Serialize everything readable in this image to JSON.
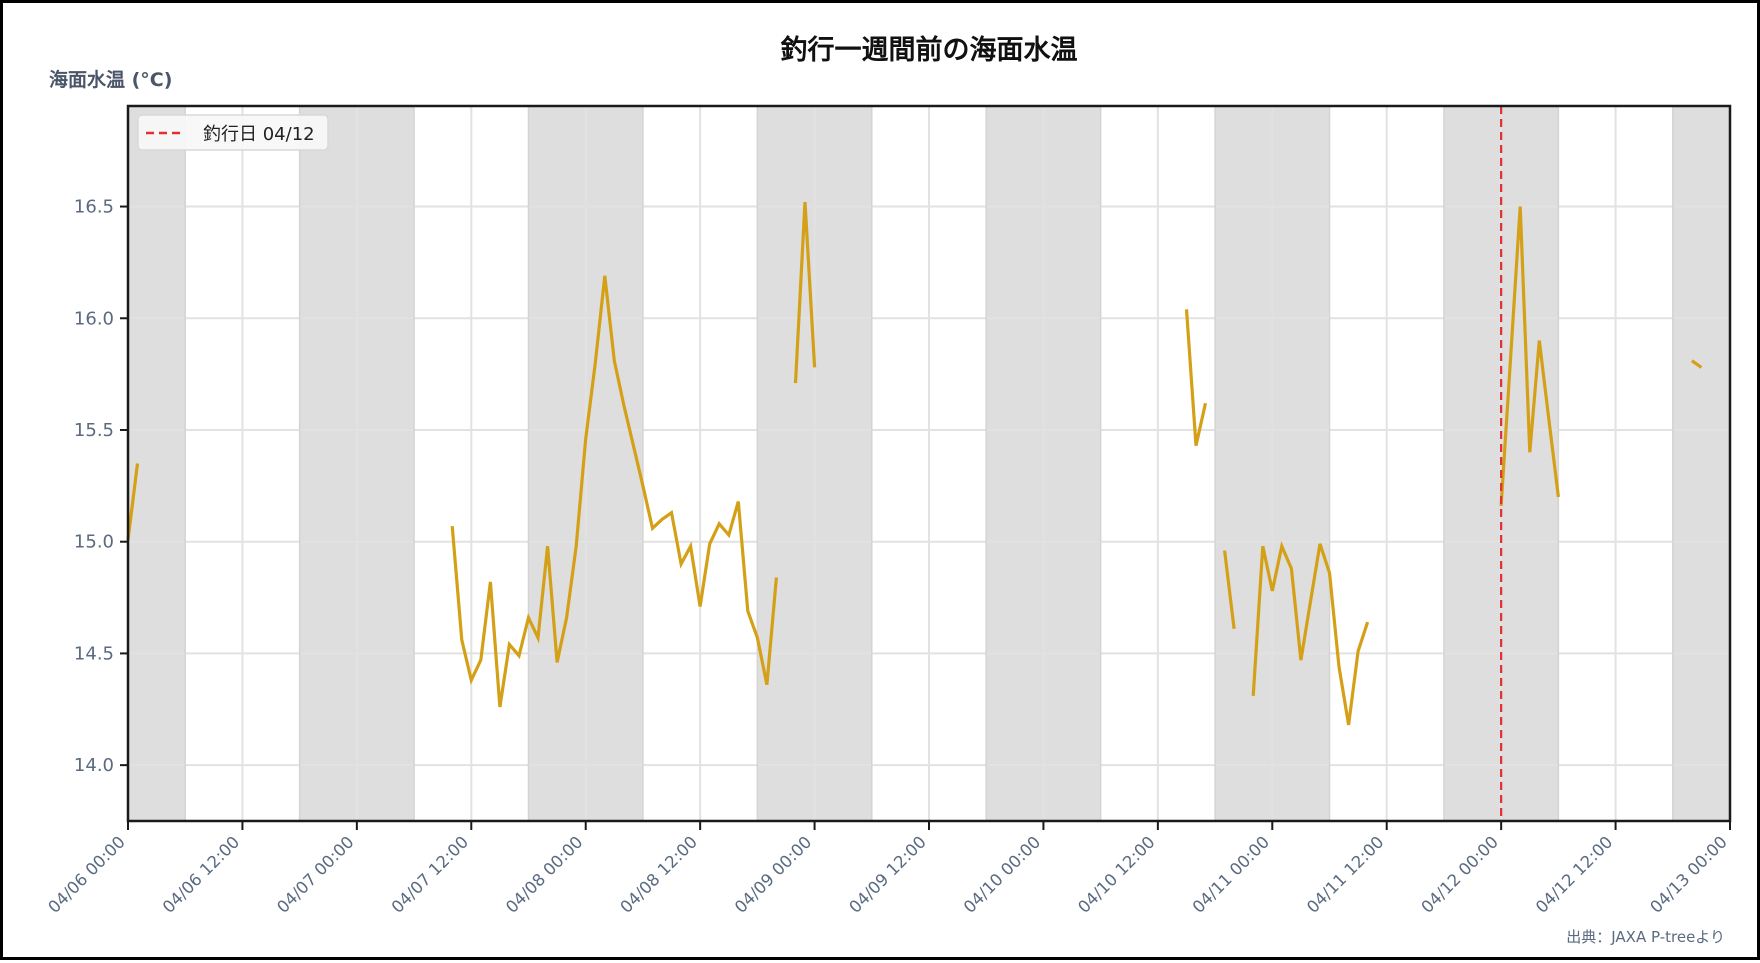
{
  "title": "釣行一週間前の海面水温",
  "y_axis_label": "海面水温 (°C)",
  "legend": {
    "label": "釣行日 04/12",
    "color": "#E03030",
    "style": "dashed"
  },
  "source_note": "出典：JAXA P-treeより",
  "colors": {
    "line": "#D4A017",
    "night_band": "#DEDEDE",
    "grid": "#E2E2E2",
    "axis": "#1a1a1a",
    "fishing_day_marker": "#E03030"
  },
  "chart_data": {
    "type": "line",
    "title": "釣行一週間前の海面水温",
    "xlabel": "",
    "ylabel": "海面水温 (°C)",
    "x_range": [
      "04/06 00:00",
      "04/13 00:00"
    ],
    "ylim": [
      13.75,
      16.95
    ],
    "x_ticks": [
      "04/06 00:00",
      "04/06 12:00",
      "04/07 00:00",
      "04/07 12:00",
      "04/08 00:00",
      "04/08 12:00",
      "04/09 00:00",
      "04/09 12:00",
      "04/10 00:00",
      "04/10 12:00",
      "04/11 00:00",
      "04/11 12:00",
      "04/12 00:00",
      "04/12 12:00",
      "04/13 00:00"
    ],
    "y_ticks": [
      14.0,
      14.5,
      15.0,
      15.5,
      16.0,
      16.5
    ],
    "grid": true,
    "legend_position": "upper left",
    "night_bands": [
      [
        "04/06 00:00",
        "04/06 06:00"
      ],
      [
        "04/06 18:00",
        "04/07 06:00"
      ],
      [
        "04/07 18:00",
        "04/08 06:00"
      ],
      [
        "04/08 18:00",
        "04/09 06:00"
      ],
      [
        "04/09 18:00",
        "04/10 06:00"
      ],
      [
        "04/10 18:00",
        "04/11 06:00"
      ],
      [
        "04/11 18:00",
        "04/12 06:00"
      ],
      [
        "04/12 18:00",
        "04/13 00:00"
      ]
    ],
    "vertical_marker": {
      "x": "04/12 00:00",
      "label": "釣行日 04/12"
    },
    "series": [
      {
        "name": "海面水温",
        "unit": "°C",
        "segments": [
          [
            [
              "04/06 00:00",
              15.01
            ],
            [
              "04/06 01:00",
              15.35
            ]
          ],
          [
            [
              "04/07 10:00",
              15.07
            ],
            [
              "04/07 11:00",
              14.56
            ],
            [
              "04/07 12:00",
              14.38
            ],
            [
              "04/07 13:00",
              14.47
            ],
            [
              "04/07 14:00",
              14.82
            ],
            [
              "04/07 15:00",
              14.26
            ],
            [
              "04/07 16:00",
              14.54
            ],
            [
              "04/07 17:00",
              14.49
            ],
            [
              "04/07 18:00",
              14.66
            ],
            [
              "04/07 19:00",
              14.57
            ],
            [
              "04/07 20:00",
              14.98
            ],
            [
              "04/07 21:00",
              14.46
            ],
            [
              "04/07 22:00",
              14.66
            ],
            [
              "04/07 23:00",
              14.98
            ],
            [
              "04/08 00:00",
              15.46
            ],
            [
              "04/08 01:00",
              15.8
            ],
            [
              "04/08 02:00",
              16.19
            ],
            [
              "04/08 03:00",
              15.81
            ],
            [
              "04/08 04:00",
              15.61
            ],
            [
              "04/08 05:00",
              15.43
            ],
            [
              "04/08 06:00",
              15.25
            ],
            [
              "04/08 07:00",
              15.06
            ],
            [
              "04/08 08:00",
              15.1
            ],
            [
              "04/08 09:00",
              15.13
            ],
            [
              "04/08 10:00",
              14.9
            ],
            [
              "04/08 11:00",
              14.98
            ],
            [
              "04/08 12:00",
              14.71
            ],
            [
              "04/08 13:00",
              14.99
            ],
            [
              "04/08 14:00",
              15.08
            ],
            [
              "04/08 15:00",
              15.03
            ],
            [
              "04/08 16:00",
              15.18
            ],
            [
              "04/08 17:00",
              14.69
            ],
            [
              "04/08 18:00",
              14.57
            ],
            [
              "04/08 19:00",
              14.36
            ],
            [
              "04/08 20:00",
              14.84
            ]
          ],
          [
            [
              "04/08 22:00",
              15.71
            ],
            [
              "04/08 23:00",
              16.52
            ],
            [
              "04/09 00:00",
              15.78
            ]
          ],
          [
            [
              "04/10 15:00",
              16.04
            ],
            [
              "04/10 16:00",
              15.43
            ],
            [
              "04/10 17:00",
              15.62
            ]
          ],
          [
            [
              "04/10 19:00",
              14.96
            ],
            [
              "04/10 20:00",
              14.61
            ]
          ],
          [
            [
              "04/10 22:00",
              14.31
            ],
            [
              "04/10 23:00",
              14.98
            ],
            [
              "04/11 00:00",
              14.78
            ],
            [
              "04/11 01:00",
              14.98
            ],
            [
              "04/11 02:00",
              14.88
            ],
            [
              "04/11 03:00",
              14.47
            ],
            [
              "04/11 04:00",
              14.73
            ],
            [
              "04/11 05:00",
              14.99
            ],
            [
              "04/11 06:00",
              14.86
            ],
            [
              "04/11 07:00",
              14.44
            ],
            [
              "04/11 08:00",
              14.18
            ],
            [
              "04/11 09:00",
              14.51
            ],
            [
              "04/11 10:00",
              14.64
            ]
          ],
          [
            [
              "04/12 00:00",
              15.16
            ],
            [
              "04/12 01:00",
              15.83
            ],
            [
              "04/12 02:00",
              16.5
            ],
            [
              "04/12 03:00",
              15.4
            ],
            [
              "04/12 04:00",
              15.9
            ],
            [
              "04/12 05:00",
              15.55
            ],
            [
              "04/12 06:00",
              15.2
            ]
          ],
          [
            [
              "04/12 20:00",
              15.81
            ],
            [
              "04/12 21:00",
              15.78
            ]
          ]
        ]
      }
    ]
  }
}
